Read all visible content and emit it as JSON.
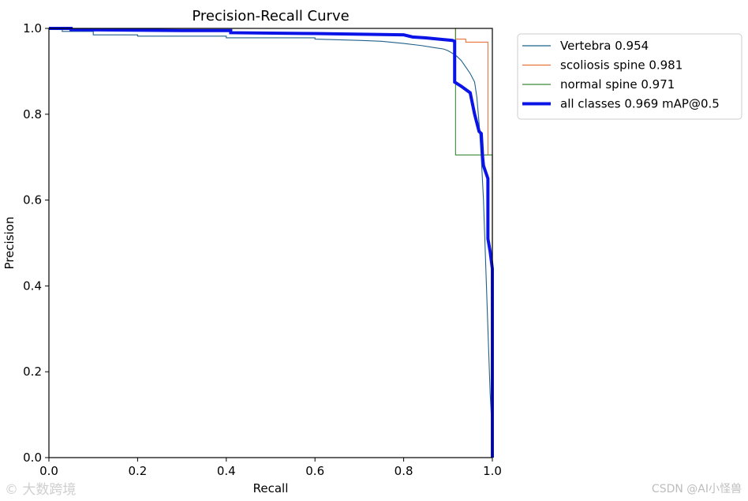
{
  "chart_data": {
    "type": "line",
    "title": "Precision-Recall Curve",
    "xlabel": "Recall",
    "ylabel": "Precision",
    "xlim": [
      0,
      1
    ],
    "ylim": [
      0,
      1
    ],
    "xticks": [
      "0.0",
      "0.2",
      "0.4",
      "0.6",
      "0.8",
      "1.0"
    ],
    "yticks": [
      "0.0",
      "0.2",
      "0.4",
      "0.6",
      "0.8",
      "1.0"
    ],
    "grid": false,
    "legend_position": "outside-right-top",
    "series": [
      {
        "name": "Vertebra 0.954",
        "color": "#1f5f8b",
        "x": [
          0,
          0.03,
          0.03,
          0.1,
          0.1,
          0.2,
          0.2,
          0.4,
          0.4,
          0.6,
          0.6,
          0.7,
          0.75,
          0.8,
          0.84,
          0.87,
          0.89,
          0.9,
          0.91,
          0.92,
          0.93,
          0.94,
          0.95,
          0.96,
          0.965,
          0.97,
          0.975,
          0.98,
          0.985,
          0.99,
          0.995,
          1.0,
          1.0
        ],
        "y": [
          1.0,
          1.0,
          0.993,
          0.993,
          0.985,
          0.985,
          0.982,
          0.982,
          0.978,
          0.978,
          0.975,
          0.972,
          0.97,
          0.965,
          0.96,
          0.955,
          0.952,
          0.948,
          0.942,
          0.935,
          0.925,
          0.91,
          0.895,
          0.875,
          0.84,
          0.78,
          0.7,
          0.6,
          0.45,
          0.3,
          0.15,
          0.05,
          0.0
        ]
      },
      {
        "name": "scoliosis spine 0.981",
        "color": "#e8743b",
        "x": [
          0,
          0.917,
          0.917,
          0.94,
          0.94,
          0.99,
          0.99,
          1.0,
          1.0
        ],
        "y": [
          1.0,
          1.0,
          0.975,
          0.975,
          0.968,
          0.968,
          0.705,
          0.705,
          0.0
        ]
      },
      {
        "name": "normal spine 0.971",
        "color": "#3a8a3a",
        "x": [
          0,
          0.917,
          0.917,
          1.0,
          1.0
        ],
        "y": [
          1.0,
          1.0,
          0.705,
          0.705,
          0.0
        ]
      },
      {
        "name": "all classes 0.969 mAP@0.5",
        "color": "#0a14e6",
        "bold": true,
        "x": [
          0,
          0.05,
          0.05,
          0.3,
          0.4,
          0.41,
          0.41,
          0.6,
          0.8,
          0.82,
          0.85,
          0.88,
          0.91,
          0.915,
          0.915,
          0.93,
          0.95,
          0.96,
          0.97,
          0.975,
          0.978,
          0.98,
          0.99,
          0.99,
          0.995,
          1.0,
          1.0
        ],
        "y": [
          1.0,
          1.0,
          0.997,
          0.995,
          0.995,
          0.995,
          0.99,
          0.988,
          0.985,
          0.98,
          0.978,
          0.975,
          0.972,
          0.97,
          0.875,
          0.865,
          0.85,
          0.8,
          0.76,
          0.755,
          0.7,
          0.68,
          0.65,
          0.51,
          0.48,
          0.44,
          0.0
        ]
      }
    ]
  },
  "watermarks": {
    "left": "© 大数跨境",
    "right": "CSDN @AI小怪兽"
  }
}
